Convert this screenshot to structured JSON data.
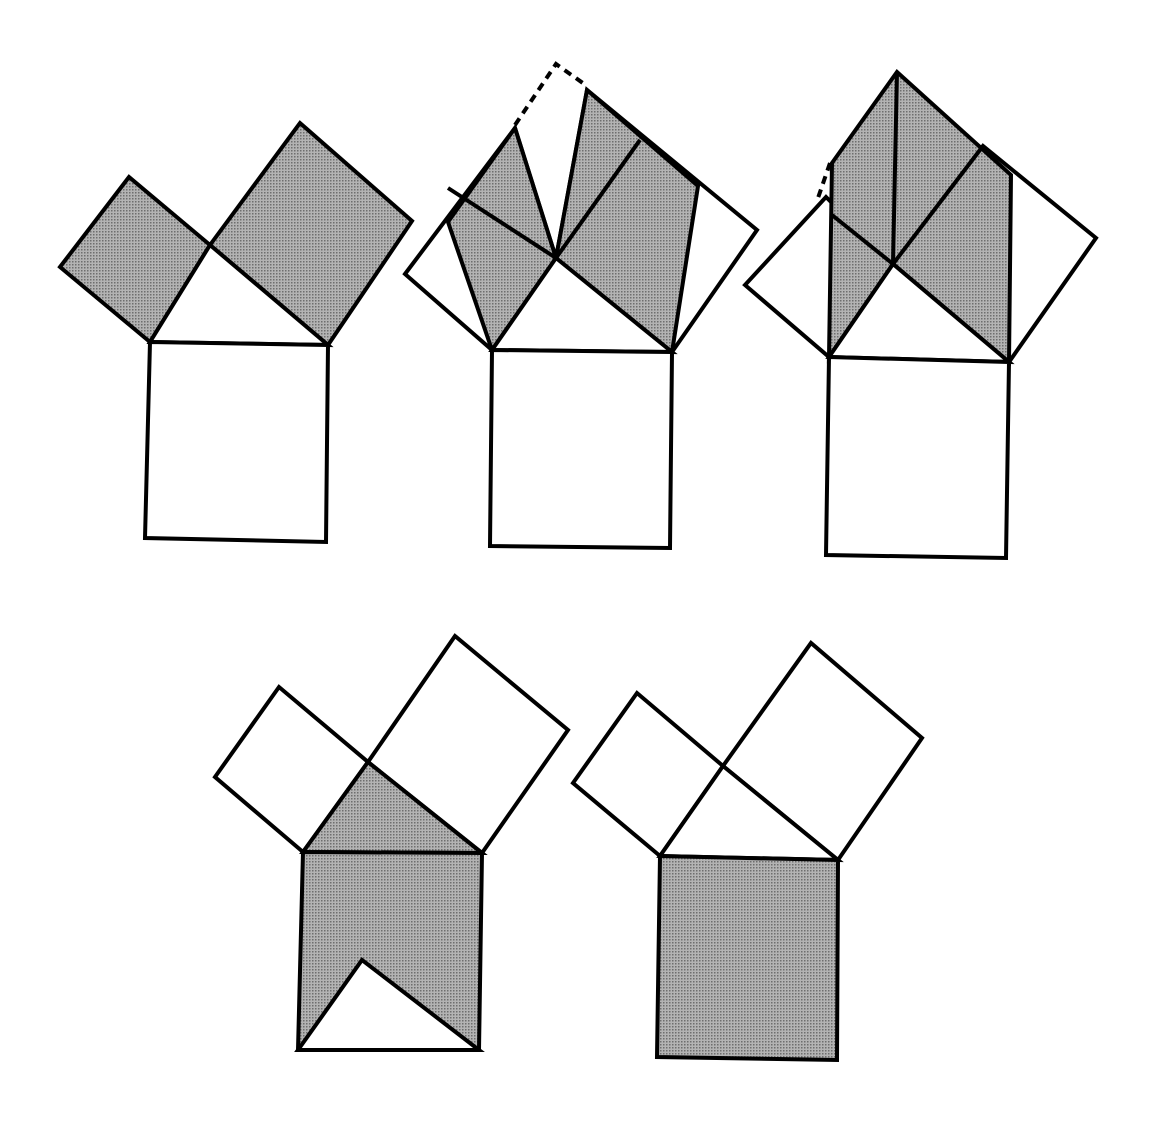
{
  "diagram": {
    "description_visible_text": "",
    "colors": {
      "background": "#ffffff",
      "stroke": "#000000",
      "shade": "#9a9a9a"
    },
    "figures": [
      {
        "name": "figure-step-1",
        "shaded_parts": [
          "leg-square-small",
          "leg-square-large"
        ]
      },
      {
        "name": "figure-step-2",
        "shaded_parts": [
          "sheared-small",
          "sheared-large"
        ]
      },
      {
        "name": "figure-step-3",
        "shaded_parts": [
          "rotated-parallelograms"
        ]
      },
      {
        "name": "figure-step-4",
        "shaded_parts": [
          "triangle",
          "hypotenuse-square-minus-notch"
        ]
      },
      {
        "name": "figure-step-5",
        "shaded_parts": [
          "hypotenuse-square"
        ]
      }
    ]
  }
}
